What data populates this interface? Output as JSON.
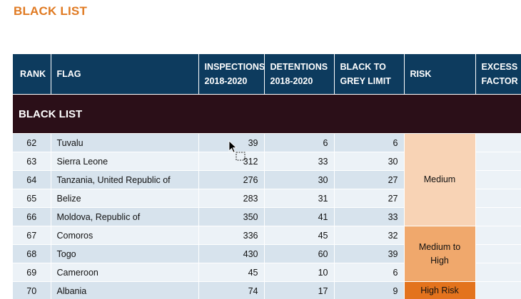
{
  "title": "BLACK LIST",
  "table": {
    "headers": {
      "rank": "RANK",
      "flag": "FLAG",
      "inspections_l1": "INSPECTIONS",
      "inspections_l2": "2018-2020",
      "detentions_l1": "DETENTIONS",
      "detentions_l2": "2018-2020",
      "btg_l1": "BLACK TO",
      "btg_l2": "GREY LIMIT",
      "risk": "RISK",
      "excess_l1": "EXCESS",
      "excess_l2": "FACTOR"
    },
    "section_label": "BLACK LIST",
    "rows": [
      {
        "rank": "62",
        "flag": "Tuvalu",
        "inspections": "39",
        "detentions": "6",
        "limit": "6"
      },
      {
        "rank": "63",
        "flag": "Sierra Leone",
        "inspections": "312",
        "detentions": "33",
        "limit": "30"
      },
      {
        "rank": "64",
        "flag": "Tanzania, United Republic of",
        "inspections": "276",
        "detentions": "30",
        "limit": "27"
      },
      {
        "rank": "65",
        "flag": "Belize",
        "inspections": "283",
        "detentions": "31",
        "limit": "27"
      },
      {
        "rank": "66",
        "flag": "Moldova, Republic of",
        "inspections": "350",
        "detentions": "41",
        "limit": "33"
      },
      {
        "rank": "67",
        "flag": "Comoros",
        "inspections": "336",
        "detentions": "45",
        "limit": "32"
      },
      {
        "rank": "68",
        "flag": "Togo",
        "inspections": "430",
        "detentions": "60",
        "limit": "39"
      },
      {
        "rank": "69",
        "flag": "Cameroon",
        "inspections": "45",
        "detentions": "10",
        "limit": "6"
      },
      {
        "rank": "70",
        "flag": "Albania",
        "inspections": "74",
        "detentions": "17",
        "limit": "9"
      }
    ],
    "risk_groups": {
      "medium": "Medium",
      "medium_high_l1": "Medium to",
      "medium_high_l2": "High",
      "high": "High Risk"
    }
  },
  "colors": {
    "header_bg": "#0d3b5e",
    "section_bg": "#2b0f18",
    "title": "#e07a22",
    "risk_medium": "#f8d3b5",
    "risk_medium_high": "#f0a86c",
    "risk_high": "#e3731d"
  },
  "icons": {
    "cursor": "mouse-pointer-icon"
  }
}
